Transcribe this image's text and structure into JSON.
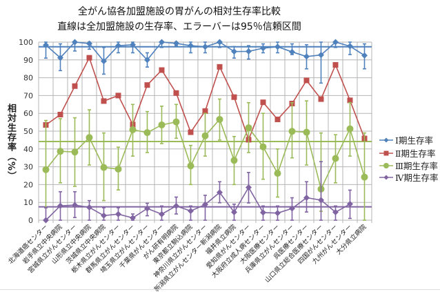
{
  "chart_data": {
    "type": "line",
    "title": "全がん協各加盟施設の胃がんの相対生存率比較",
    "subtitle": "直線は全加盟施設の生存率、エラーバーは95％信頼区間",
    "ylabel": "相対生存率（%）",
    "xlabel": "",
    "ylim": [
      0,
      100
    ],
    "yticks": [
      0,
      10,
      20,
      30,
      40,
      50,
      60,
      70,
      80,
      90,
      100
    ],
    "grid": true,
    "legend_position": "right",
    "categories": [
      "北海道癌センター",
      "岩手県立中央病院",
      "宮城県立がんセンター",
      "山形県立中央病院",
      "茨城県立中央病院",
      "栃木県立がんセンター",
      "群馬県立がんセンター",
      "埼玉県立がんセンター",
      "千葉県がんセンター",
      "がん研有明病院",
      "東京都立駒込病院",
      "神奈川県立がんセンター",
      "新潟県立がんセンター新潟病院",
      "福井県立病院",
      "愛知県がんセンター",
      "大阪府立成人病センター",
      "大阪医療センター",
      "兵庫県立がんセンター",
      "呉医療センター",
      "山口県立総合医療センター",
      "四国がんセンター",
      "九州がんセンター",
      "大分県立病院"
    ],
    "series": [
      {
        "name": "Ⅰ期生存率",
        "color": "#4f81bd",
        "marker": "diamond",
        "overall": 97.4,
        "values": [
          98.3,
          91.2,
          100,
          99.2,
          89.3,
          98,
          98.5,
          90,
          100,
          99.3,
          98,
          97.4,
          100,
          94.7,
          94.8,
          96.6,
          97.4,
          94.5,
          91.9,
          92.8,
          100,
          97.7,
          92.5
        ],
        "lower": [
          91,
          84,
          95,
          96,
          82,
          94,
          94,
          86,
          97,
          98,
          94,
          94,
          97,
          91,
          90.5,
          94,
          94,
          93,
          85,
          77,
          97,
          93,
          85
        ],
        "upper": [
          100,
          99,
          100,
          100,
          97,
          100,
          100,
          94,
          100,
          100,
          100,
          100,
          100,
          97.5,
          98,
          99,
          100,
          99,
          98.5,
          100,
          100,
          100,
          99
        ]
      },
      {
        "name": "Ⅱ期生存率",
        "color": "#c0504d",
        "marker": "square",
        "overall": null,
        "values": [
          53.5,
          59.3,
          75.3,
          91.2,
          66.9,
          70,
          53.7,
          75.9,
          84.3,
          71.4,
          49.4,
          61.3,
          86.1,
          69.1,
          45.2,
          66.2,
          56.6,
          65.5,
          78.5,
          68,
          87.2,
          67.3,
          45.9
        ]
      },
      {
        "name": "Ⅲ期生存率",
        "color": "#9bbb59",
        "marker": "circle",
        "overall": 44.2,
        "values": [
          28.4,
          38.7,
          38.3,
          46.4,
          29.6,
          28.7,
          50.8,
          49.2,
          53.5,
          55.2,
          30.5,
          47.4,
          56.6,
          33.6,
          51.9,
          41.2,
          26.3,
          49.9,
          49.4,
          17.5,
          34.7,
          51.3,
          24.2
        ],
        "lower": [
          7,
          21,
          19,
          31,
          11,
          17,
          36,
          38,
          43,
          46,
          20,
          36,
          45,
          20,
          38,
          23,
          13,
          35,
          31,
          5,
          21,
          36,
          0
        ],
        "upper": [
          56,
          57,
          57.5,
          62,
          49,
          41,
          65,
          61,
          64,
          65,
          42,
          60,
          68,
          47,
          66,
          60,
          40,
          66,
          67,
          49,
          48,
          66,
          49
        ]
      },
      {
        "name": "Ⅳ期生存率",
        "color": "#8064a2",
        "marker": "diamond",
        "overall": 7.5,
        "values": [
          0,
          8.1,
          8.5,
          7.2,
          2.6,
          3.4,
          1.3,
          6.6,
          3.4,
          8,
          5.2,
          8.8,
          15.6,
          4.5,
          18.4,
          4.3,
          4,
          6.6,
          12.6,
          11.3,
          4.5,
          9.1,
          null
        ],
        "lower": [
          0,
          0,
          1.5,
          0,
          0,
          0,
          0,
          2.5,
          0,
          3.5,
          0,
          0,
          9.8,
          0,
          9.7,
          0,
          0,
          0,
          4.6,
          0,
          0,
          1,
          null
        ],
        "upper": [
          7,
          16,
          16,
          11,
          7,
          7,
          3.5,
          9.5,
          8,
          13,
          8,
          14,
          21.6,
          9,
          26.8,
          8,
          8,
          12.6,
          21.6,
          32.9,
          8,
          16.9,
          null
        ]
      }
    ]
  }
}
